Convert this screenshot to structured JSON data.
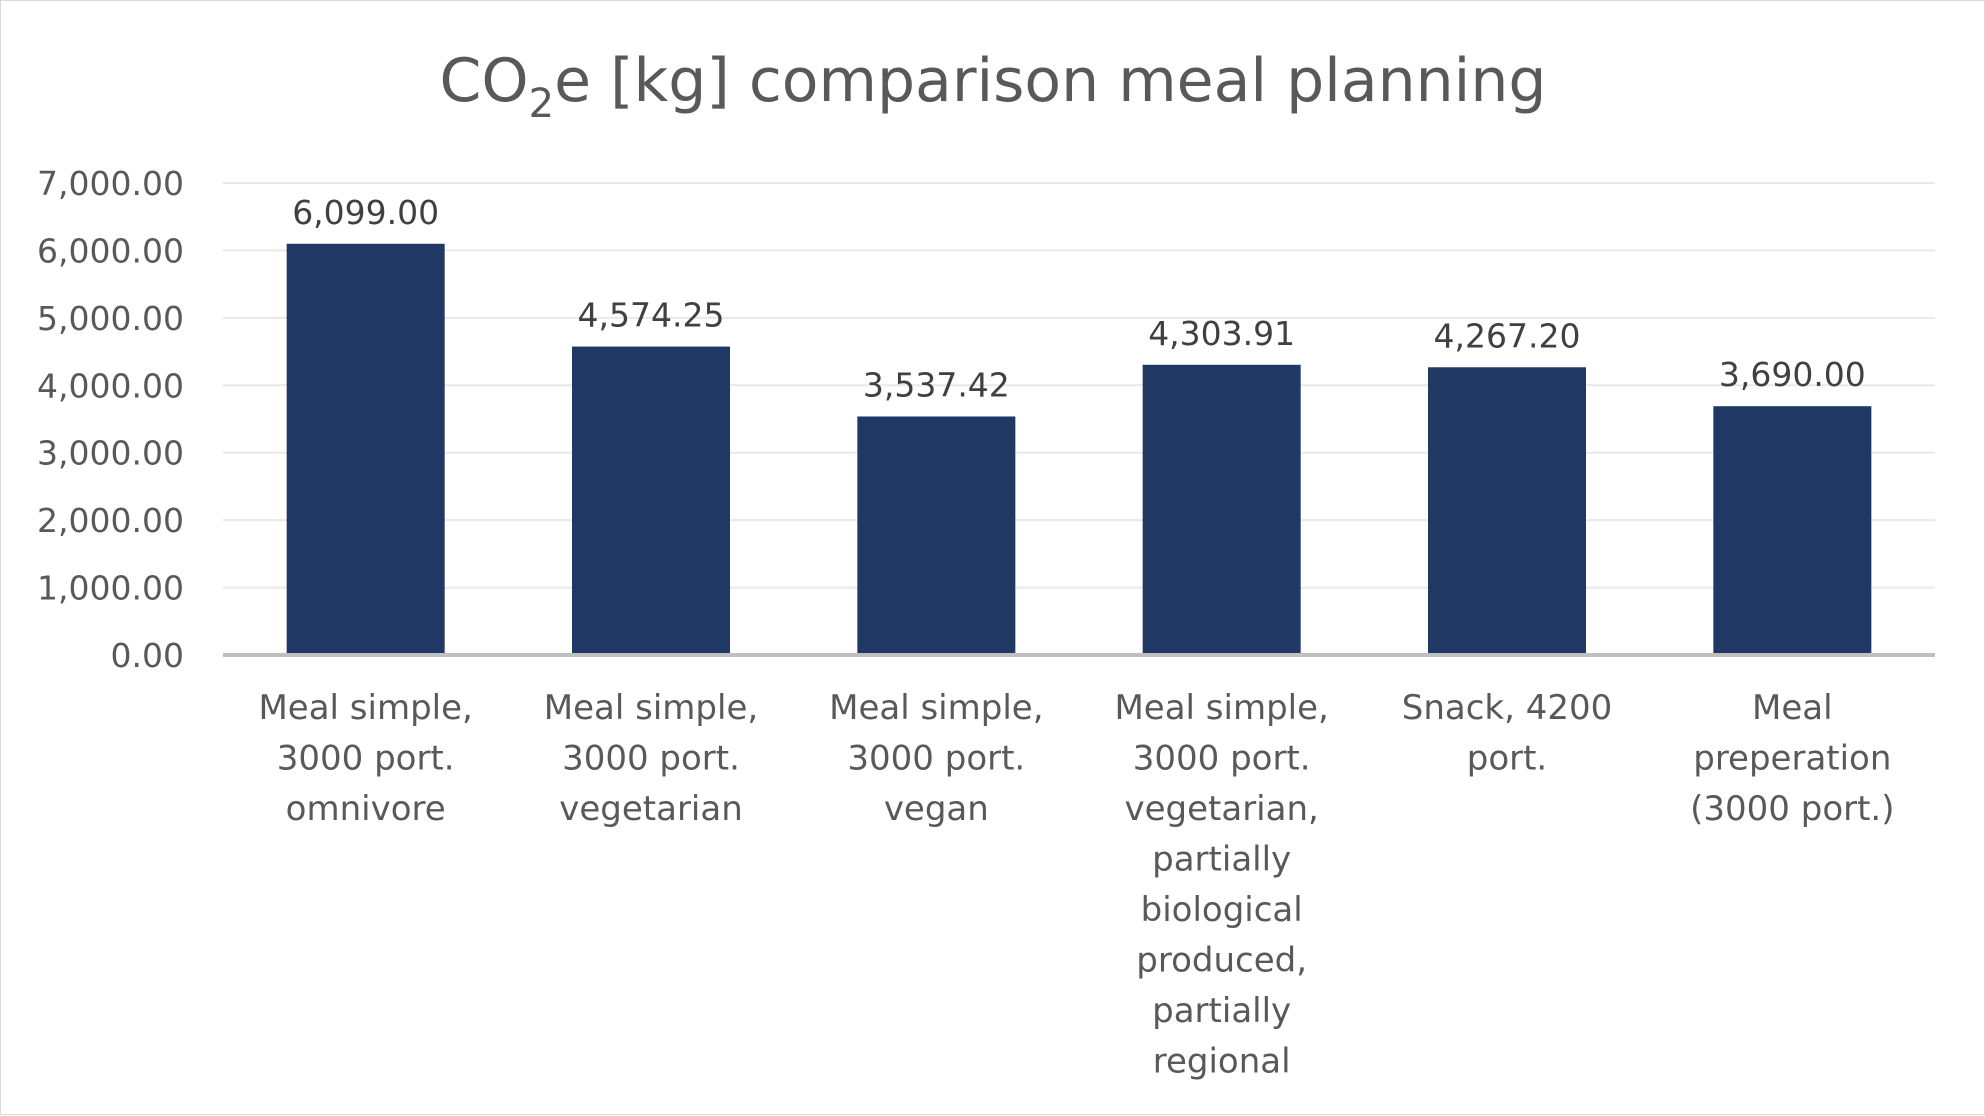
{
  "chart_data": {
    "type": "bar",
    "title": {
      "prefix": "CO",
      "subscript": "2",
      "suffix": "e [kg] comparison meal planning"
    },
    "categories": [
      [
        "Meal simple,",
        "3000 port.",
        "omnivore"
      ],
      [
        "Meal simple,",
        "3000 port.",
        "vegetarian"
      ],
      [
        "Meal simple,",
        "3000 port.",
        "vegan"
      ],
      [
        "Meal simple,",
        "3000 port.",
        "vegetarian,",
        "partially",
        "biological",
        "produced,",
        "partially",
        "regional"
      ],
      [
        "Snack, 4200",
        "port."
      ],
      [
        "Meal",
        "preperation",
        "(3000 port.)"
      ]
    ],
    "values": [
      6099.0,
      4574.25,
      3537.42,
      4303.91,
      4267.2,
      3690.0
    ],
    "data_labels": [
      "6,099.00",
      "4,574.25",
      "3,537.42",
      "4,303.91",
      "4,267.20",
      "3,690.00"
    ],
    "y_ticks": [
      {
        "value": 0,
        "label": "0.00"
      },
      {
        "value": 1000,
        "label": "1,000.00"
      },
      {
        "value": 2000,
        "label": "2,000.00"
      },
      {
        "value": 3000,
        "label": "3,000.00"
      },
      {
        "value": 4000,
        "label": "4,000.00"
      },
      {
        "value": 5000,
        "label": "5,000.00"
      },
      {
        "value": 6000,
        "label": "6,000.00"
      },
      {
        "value": 7000,
        "label": "7,000.00"
      }
    ],
    "ylim": [
      0,
      7000
    ],
    "xlabel": "",
    "ylabel": "",
    "grid": true,
    "legend": "none",
    "colors": {
      "bar": "#203864",
      "grid": "#e8e8e8",
      "axis": "#bfbfbf"
    }
  }
}
